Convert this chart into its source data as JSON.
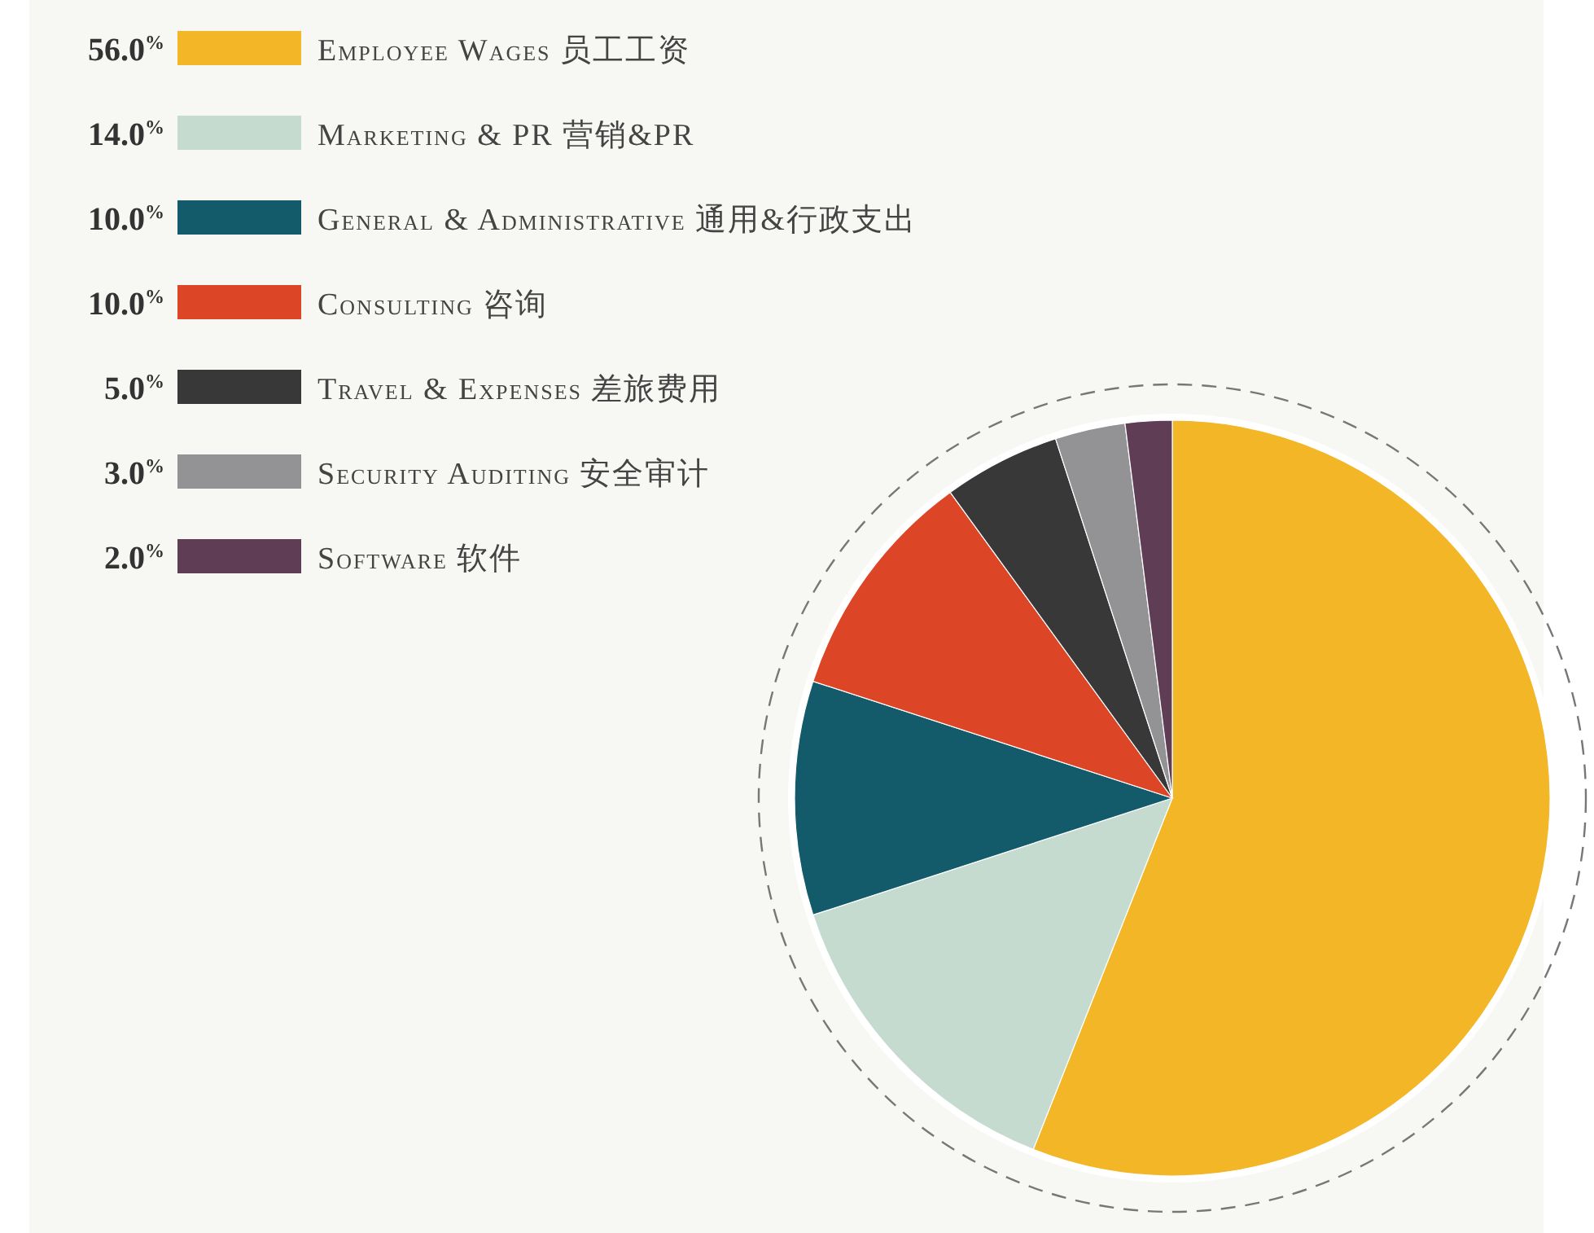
{
  "chart_data": {
    "type": "pie",
    "categories": [
      "Employee Wages 员工工资",
      "Marketing & PR 营销&PR",
      "General & Administrative 通用&行政支出",
      "Consulting 咨询",
      "Travel & Expenses 差旅费用",
      "Security Auditing 安全审计",
      "Software 软件"
    ],
    "values": [
      56,
      14,
      10,
      10,
      5,
      3,
      2
    ],
    "value_labels": [
      "56.0$^{%}$",
      "14.0$^{%}$",
      "10.0$^{%}$",
      "10.0$^{%}$",
      "5.0$^{%}$",
      "3.0$^{%}$",
      "2.0$^{%}$"
    ],
    "colors": [
      "#f2b627",
      "#c5dbd0",
      "#135a6a",
      "#dd4527",
      "#383838",
      "#939396",
      "#5f3d55"
    ],
    "legend": "top left"
  }
}
